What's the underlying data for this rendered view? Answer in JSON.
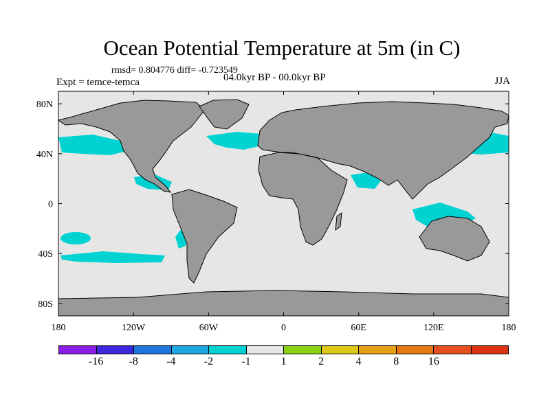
{
  "title": "Ocean Potential Temperature at 5m (in C)",
  "stats": "rmsd= 0.804776 diff= -0.723549",
  "experiment": "Expt = temce-temca",
  "period": "04.0kyr BP - 00.0kyr BP",
  "season": "JJA",
  "colors": {
    "land": "#999999",
    "ocean_neutral": "#e6e6e6",
    "cyan_anomaly": "#00d2d2"
  },
  "axes": {
    "lon_ticks": [
      {
        "value": -180,
        "label": "180"
      },
      {
        "value": -120,
        "label": "120W"
      },
      {
        "value": -60,
        "label": "60W"
      },
      {
        "value": 0,
        "label": "0"
      },
      {
        "value": 60,
        "label": "60E"
      },
      {
        "value": 120,
        "label": "120E"
      },
      {
        "value": 180,
        "label": "180"
      }
    ],
    "lat_ticks": [
      {
        "value": 80,
        "label": "80N"
      },
      {
        "value": 40,
        "label": "40N"
      },
      {
        "value": 0,
        "label": "0"
      },
      {
        "value": -40,
        "label": "40S"
      },
      {
        "value": -80,
        "label": "80S"
      }
    ]
  },
  "colorbar": {
    "colors": [
      "#8a1ee6",
      "#3c28dc",
      "#1e78dc",
      "#1ea8e6",
      "#00d2d2",
      "#e6e6e6",
      "#8cd214",
      "#dcc814",
      "#e6a014",
      "#e67814",
      "#e6501e",
      "#dc3214"
    ],
    "labels": [
      "-16",
      "-8",
      "-4",
      "-2",
      "-1",
      "1",
      "2",
      "4",
      "8",
      "16"
    ]
  }
}
